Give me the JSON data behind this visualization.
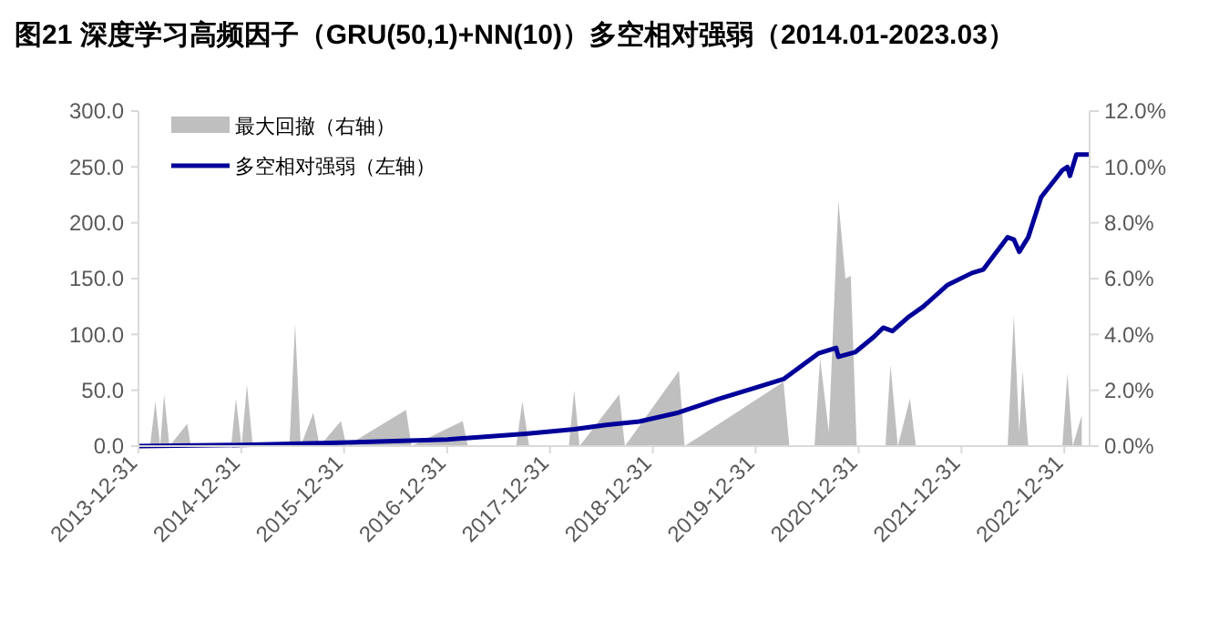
{
  "chart_data": {
    "type": "line",
    "title": "图21 深度学习高频因子（GRU(50,1)+NN(10)）多空相对强弱（2014.01-2023.03）",
    "xlim": [
      "2013-12-31",
      "2023-03-31"
    ],
    "xticks": [
      "2013-12-31",
      "2014-12-31",
      "2015-12-31",
      "2016-12-31",
      "2017-12-31",
      "2018-12-31",
      "2019-12-31",
      "2020-12-31",
      "2021-12-31",
      "2022-12-31"
    ],
    "ylim": [
      0,
      300
    ],
    "yticks": [
      {
        "value": 0,
        "label": "0.0"
      },
      {
        "value": 50,
        "label": "50.0"
      },
      {
        "value": 100,
        "label": "100.0"
      },
      {
        "value": 150,
        "label": "150.0"
      },
      {
        "value": 200,
        "label": "200.0"
      },
      {
        "value": 250,
        "label": "250.0"
      },
      {
        "value": 300,
        "label": "300.0"
      }
    ],
    "y2lim": [
      0,
      12
    ],
    "y2ticks": [
      {
        "value": 0,
        "label": "0.0%"
      },
      {
        "value": 2,
        "label": "2.0%"
      },
      {
        "value": 4,
        "label": "4.0%"
      },
      {
        "value": 6,
        "label": "6.0%"
      },
      {
        "value": 8,
        "label": "8.0%"
      },
      {
        "value": 10,
        "label": "10.0%"
      },
      {
        "value": 12,
        "label": "12.0%"
      }
    ],
    "legend": "top left",
    "series": [
      {
        "name": "最大回撤（右轴）",
        "type": "area",
        "axis": "y2",
        "color": "#bfbfbf",
        "x": [
          "2013-12-31",
          "2014-02-10",
          "2014-03-01",
          "2014-03-18",
          "2014-04-01",
          "2014-04-20",
          "2014-06-22",
          "2014-07-05",
          "2014-11-25",
          "2014-12-12",
          "2015-01-01",
          "2015-01-20",
          "2015-02-10",
          "2015-06-20",
          "2015-07-10",
          "2015-07-30",
          "2015-09-13",
          "2015-10-05",
          "2015-12-20",
          "2016-01-08",
          "2016-08-07",
          "2016-08-26",
          "2017-02-24",
          "2017-03-14",
          "2017-09-02",
          "2017-09-24",
          "2017-10-18",
          "2018-03-08",
          "2018-03-27",
          "2018-04-15",
          "2018-09-03",
          "2018-09-23",
          "2019-04-03",
          "2019-04-23",
          "2020-04-08",
          "2020-04-29",
          "2020-07-27",
          "2020-08-16",
          "2020-09-16",
          "2020-10-20",
          "2020-11-14",
          "2020-12-03",
          "2020-12-24",
          "2021-04-05",
          "2021-04-23",
          "2021-05-19",
          "2021-07-01",
          "2021-07-22",
          "2022-06-13",
          "2022-07-05",
          "2022-07-24",
          "2022-08-05",
          "2022-08-25",
          "2022-12-24",
          "2023-01-11",
          "2023-01-30",
          "2023-03-03"
        ],
        "values": [
          0,
          0,
          1.6,
          0,
          1.85,
          0,
          0.8,
          0,
          0,
          1.7,
          0,
          2.2,
          0,
          0,
          4.4,
          0,
          1.2,
          0,
          0.9,
          0,
          1.3,
          0,
          0.9,
          0,
          0,
          1.6,
          0,
          0,
          2.0,
          0,
          1.85,
          0,
          2.7,
          0,
          2.3,
          0,
          0,
          3.15,
          0.5,
          8.8,
          6.0,
          6.1,
          0,
          0,
          2.9,
          0,
          1.7,
          0,
          0,
          4.7,
          0.5,
          2.7,
          0,
          0,
          2.6,
          0,
          1.1
        ]
      },
      {
        "name": "多空相对强弱（左轴）",
        "type": "line",
        "color": "#000099",
        "x": [
          "2013-12-31",
          "2015-01-01",
          "2015-12-15",
          "2017-01-01",
          "2017-10-05",
          "2018-03-27",
          "2018-07-18",
          "2018-11-13",
          "2019-04-01",
          "2019-08-20",
          "2019-12-28",
          "2020-04-08",
          "2020-08-10",
          "2020-10-12",
          "2020-10-20",
          "2020-12-18",
          "2021-02-24",
          "2021-03-28",
          "2021-04-30",
          "2021-06-28",
          "2021-08-18",
          "2021-11-10",
          "2022-02-06",
          "2022-03-18",
          "2022-06-13",
          "2022-07-05",
          "2022-07-24",
          "2022-08-25",
          "2022-10-10",
          "2022-12-24",
          "2023-01-11",
          "2023-01-20",
          "2023-02-12",
          "2023-03-31"
        ],
        "values": [
          0,
          1,
          3,
          6,
          11,
          15,
          19,
          22,
          30,
          42,
          52,
          60,
          83,
          88,
          80,
          84,
          98,
          106,
          103,
          116,
          125,
          144,
          155,
          158,
          187,
          185,
          174,
          187,
          223,
          247,
          250,
          242,
          261,
          261
        ]
      }
    ]
  }
}
